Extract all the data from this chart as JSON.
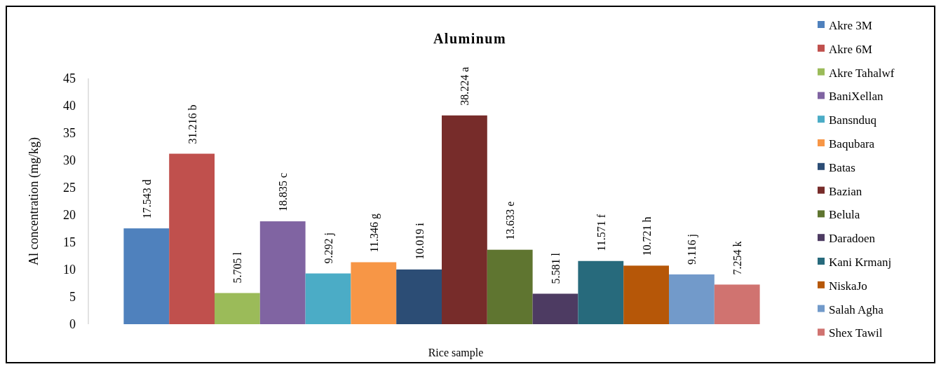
{
  "chart_data": {
    "type": "bar",
    "title": "Aluminum",
    "xlabel": "Rice sample",
    "ylabel": "Al concentration  (mg/kg)",
    "categories": [
      null
    ],
    "ylim": [
      0,
      45
    ],
    "yticks": [
      0,
      5,
      10,
      15,
      20,
      25,
      30,
      35,
      40,
      45
    ],
    "grid": false,
    "legend": "right",
    "series": [
      {
        "name": "Akre 3M",
        "color": "#4f81bd",
        "values": [
          17.543
        ],
        "value_labels": [
          "17.543 d"
        ]
      },
      {
        "name": "Akre 6M",
        "color": "#c0504d",
        "values": [
          31.216
        ],
        "value_labels": [
          "31.216 b"
        ]
      },
      {
        "name": "Akre Tahalwf",
        "color": "#9bbb59",
        "values": [
          5.705
        ],
        "value_labels": [
          "5.705 l"
        ]
      },
      {
        "name": "BaniXellan",
        "color": "#8064a2",
        "values": [
          18.835
        ],
        "value_labels": [
          "18.835 c"
        ]
      },
      {
        "name": "Bansnduq",
        "color": "#4bacc6",
        "values": [
          9.292
        ],
        "value_labels": [
          "9.292 j"
        ]
      },
      {
        "name": "Baqubara",
        "color": "#f79646",
        "values": [
          11.346
        ],
        "value_labels": [
          "11.346 g"
        ]
      },
      {
        "name": "Batas",
        "color": "#2c4d75",
        "values": [
          10.019
        ],
        "value_labels": [
          "10.019 i"
        ]
      },
      {
        "name": "Bazian",
        "color": "#772c2a",
        "values": [
          38.224
        ],
        "value_labels": [
          "38.224 a"
        ]
      },
      {
        "name": "Belula",
        "color": "#5f7530",
        "values": [
          13.633
        ],
        "value_labels": [
          "13.633 e"
        ]
      },
      {
        "name": "Daradoen",
        "color": "#4d3b62",
        "values": [
          5.581
        ],
        "value_labels": [
          "5.581 l"
        ]
      },
      {
        "name": "Kani Krmanj",
        "color": "#276a7c",
        "values": [
          11.571
        ],
        "value_labels": [
          "11.571 f"
        ]
      },
      {
        "name": "NiskaJo",
        "color": "#b65708",
        "values": [
          10.721
        ],
        "value_labels": [
          "10.721 h"
        ]
      },
      {
        "name": "Salah Agha",
        "color": "#729aca",
        "values": [
          9.116
        ],
        "value_labels": [
          "9.116 j"
        ]
      },
      {
        "name": "Shex Tawil",
        "color": "#d07370",
        "values": [
          7.254
        ],
        "value_labels": [
          "7.254 k"
        ]
      }
    ]
  }
}
